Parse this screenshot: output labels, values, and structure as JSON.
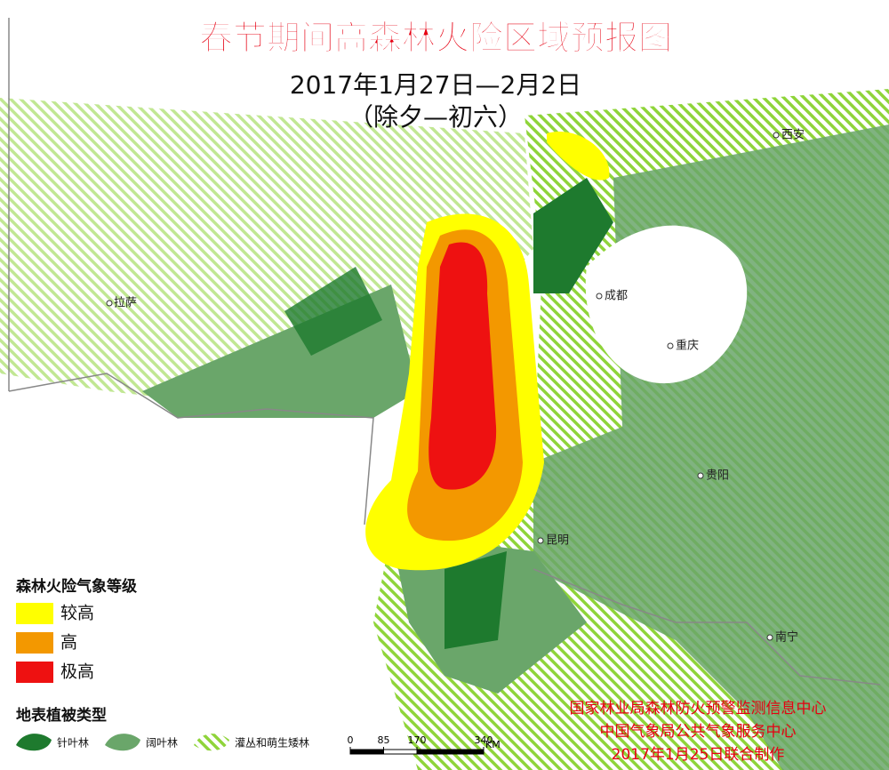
{
  "title": "春节期间高森林火险区域预报图",
  "subtitle": "2017年1月27日—2月2日",
  "subtitle2": "（除夕—初六）",
  "cities": [
    "拉萨",
    "成都",
    "重庆",
    "西安",
    "贵阳",
    "昆明",
    "南宁"
  ],
  "risk_legend": {
    "title": "森林火险气象等级",
    "items": [
      {
        "label": "较高",
        "color": "#ffff00"
      },
      {
        "label": "高",
        "color": "#f39800"
      },
      {
        "label": "极高",
        "color": "#ee1111"
      }
    ]
  },
  "vegetation_legend": {
    "title": "地表植被类型",
    "items": [
      {
        "label": "针叶林",
        "color": "#1e7a2e"
      },
      {
        "label": "阔叶林",
        "color": "#6aa66a"
      },
      {
        "label": "灌丛和萌生矮林",
        "color": "#8fd43a"
      }
    ]
  },
  "scale": {
    "ticks": [
      0,
      85,
      170,
      340
    ],
    "unit": "KM"
  },
  "credits": [
    "国家林业局森林防火预警监测信息中心",
    "中国气象局公共气象服务中心",
    "2017年1月25日联合制作"
  ]
}
